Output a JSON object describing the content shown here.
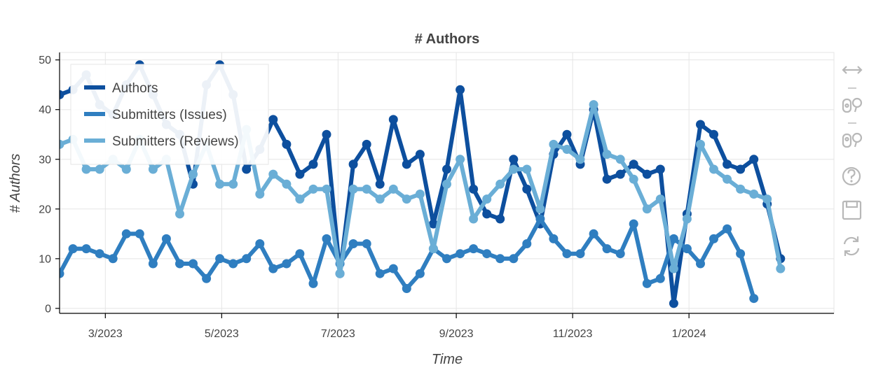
{
  "chart_data": {
    "type": "line",
    "title": "# Authors",
    "xlabel": "Time",
    "ylabel": "# Authors",
    "x_type": "date",
    "xlim": [
      "2023-02-05",
      "2024-03-17"
    ],
    "ylim": [
      -1,
      51.5
    ],
    "x_ticks": [
      {
        "date": "2023-03-01",
        "label": "3/2023"
      },
      {
        "date": "2023-05-01",
        "label": "5/2023"
      },
      {
        "date": "2023-07-01",
        "label": "7/2023"
      },
      {
        "date": "2023-09-01",
        "label": "9/2023"
      },
      {
        "date": "2023-11-01",
        "label": "11/2023"
      },
      {
        "date": "2024-01-01",
        "label": "1/2024"
      }
    ],
    "y_ticks": [
      0,
      10,
      20,
      30,
      40,
      50
    ],
    "grid": true,
    "legend_position": "top-left",
    "x": [
      "2023-02-05",
      "2023-02-12",
      "2023-02-19",
      "2023-02-26",
      "2023-03-05",
      "2023-03-12",
      "2023-03-19",
      "2023-03-26",
      "2023-04-02",
      "2023-04-09",
      "2023-04-16",
      "2023-04-23",
      "2023-04-30",
      "2023-05-07",
      "2023-05-14",
      "2023-05-21",
      "2023-05-28",
      "2023-06-04",
      "2023-06-11",
      "2023-06-18",
      "2023-06-25",
      "2023-07-02",
      "2023-07-09",
      "2023-07-16",
      "2023-07-23",
      "2023-07-30",
      "2023-08-06",
      "2023-08-13",
      "2023-08-20",
      "2023-08-27",
      "2023-09-03",
      "2023-09-10",
      "2023-09-17",
      "2023-09-24",
      "2023-10-01",
      "2023-10-08",
      "2023-10-15",
      "2023-10-22",
      "2023-10-29",
      "2023-11-05",
      "2023-11-12",
      "2023-11-19",
      "2023-11-26",
      "2023-12-03",
      "2023-12-10",
      "2023-12-17",
      "2023-12-24",
      "2023-12-31",
      "2024-01-07",
      "2024-01-14",
      "2024-01-21",
      "2024-01-28",
      "2024-02-04",
      "2024-02-11",
      "2024-02-18",
      "2024-02-25",
      "2024-03-03",
      "2024-03-10",
      "2024-03-17"
    ],
    "series": [
      {
        "name": "Authors",
        "color": "#0d4f9e",
        "values": [
          43,
          44,
          47,
          41,
          39,
          45,
          49,
          43,
          37,
          35,
          25,
          45,
          49,
          43,
          28,
          32,
          38,
          33,
          27,
          29,
          35,
          7,
          29,
          33,
          25,
          38,
          29,
          31,
          17,
          28,
          44,
          24,
          19,
          18,
          30,
          24,
          17,
          31,
          35,
          29,
          40,
          26,
          27,
          29,
          27,
          28,
          1,
          19,
          37,
          35,
          29,
          28,
          30,
          21,
          10,
          null,
          null,
          null,
          null
        ]
      },
      {
        "name": "Submitters (Issues)",
        "color": "#2f7ec0",
        "values": [
          7,
          12,
          12,
          11,
          10,
          15,
          15,
          9,
          14,
          9,
          9,
          6,
          10,
          9,
          10,
          13,
          8,
          9,
          11,
          5,
          14,
          9,
          13,
          13,
          7,
          8,
          4,
          7,
          12,
          10,
          11,
          12,
          11,
          10,
          10,
          13,
          18,
          14,
          11,
          11,
          15,
          12,
          11,
          17,
          5,
          6,
          14,
          12,
          9,
          14,
          16,
          11,
          2,
          null,
          null,
          null,
          null,
          null,
          null
        ]
      },
      {
        "name": "Submitters (Reviews)",
        "color": "#6aaed6",
        "values": [
          33,
          34,
          28,
          28,
          30,
          28,
          34,
          28,
          30,
          19,
          27,
          33,
          25,
          25,
          36,
          23,
          27,
          25,
          22,
          24,
          24,
          7,
          24,
          24,
          22,
          24,
          22,
          23,
          12,
          25,
          30,
          18,
          22,
          25,
          28,
          28,
          20,
          33,
          32,
          30,
          41,
          31,
          30,
          26,
          20,
          22,
          8,
          18,
          33,
          28,
          26,
          24,
          23,
          22,
          8,
          null,
          null,
          null,
          null
        ]
      }
    ]
  },
  "toolbar": {
    "items": [
      {
        "name": "pan-tool",
        "icon": "pan-icon"
      },
      {
        "name": "box-zoom-tool",
        "icon": "box-zoom-icon"
      },
      {
        "name": "wheel-zoom-tool",
        "icon": "wheel-zoom-icon"
      },
      {
        "name": "help-tool",
        "icon": "help-icon"
      },
      {
        "name": "save-tool",
        "icon": "save-icon"
      },
      {
        "name": "reset-tool",
        "icon": "reset-icon"
      }
    ]
  }
}
